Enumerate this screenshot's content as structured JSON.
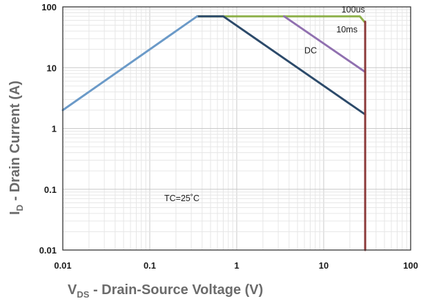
{
  "chart_data": {
    "type": "line",
    "xscale": "log",
    "yscale": "log",
    "xlim": [
      0.01,
      100
    ],
    "ylim": [
      0.01,
      100
    ],
    "grid": true,
    "x_ticks": [
      {
        "value": 0.01,
        "label": "0.01"
      },
      {
        "value": 0.1,
        "label": "0.1"
      },
      {
        "value": 1,
        "label": "1"
      },
      {
        "value": 10,
        "label": "10"
      },
      {
        "value": 100,
        "label": "100"
      }
    ],
    "y_ticks": [
      {
        "value": 0.01,
        "label": "0.01"
      },
      {
        "value": 0.1,
        "label": "0.1"
      },
      {
        "value": 1,
        "label": "1"
      },
      {
        "value": 10,
        "label": "10"
      },
      {
        "value": 100,
        "label": "100"
      }
    ],
    "xlabel": {
      "main": "V",
      "sub": "DS",
      "rest": " - Drain-Source Voltage (V)"
    },
    "ylabel": {
      "main": "I",
      "sub": "D",
      "rest": " - Drain Current (A)"
    },
    "annotation": "TC=25˚C",
    "series": [
      {
        "name": "100us",
        "color": "#8db04a",
        "points": [
          [
            0.35,
            70
          ],
          [
            26,
            70
          ],
          [
            30,
            55
          ]
        ]
      },
      {
        "name": "10ms",
        "color": "#9070b0",
        "points": [
          [
            3.5,
            70
          ],
          [
            30,
            8.5
          ]
        ]
      },
      {
        "name": "DC",
        "color": "#2c4a6a",
        "points": [
          [
            0.35,
            70
          ],
          [
            0.7,
            70
          ],
          [
            30,
            1.7
          ]
        ]
      },
      {
        "name": "",
        "color": "#6b9ac8",
        "points": [
          [
            0.01,
            2.0
          ],
          [
            0.35,
            70
          ]
        ]
      },
      {
        "name": "",
        "color": "#8c3a3a",
        "points": [
          [
            30,
            57
          ],
          [
            30,
            0.01
          ]
        ]
      }
    ],
    "curve_labels": [
      {
        "series": "100us",
        "text": "100us",
        "x": 16,
        "y": 90
      },
      {
        "series": "10ms",
        "text": "10ms",
        "x": 14,
        "y": 42
      },
      {
        "series": "DC",
        "text": "DC",
        "x": 6,
        "y": 19
      }
    ]
  }
}
